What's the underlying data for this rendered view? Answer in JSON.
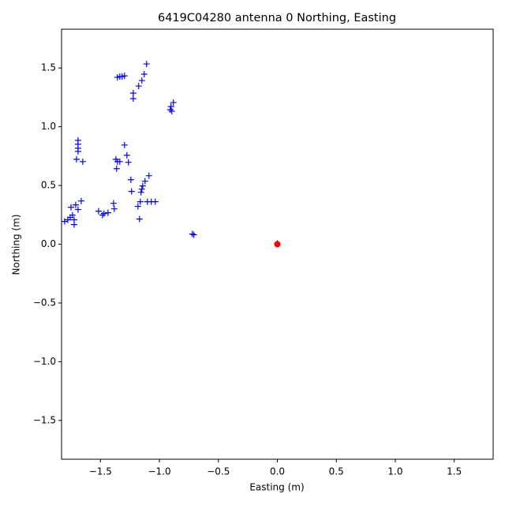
{
  "chart_data": {
    "type": "scatter",
    "title": "6419C04280 antenna 0 Northing, Easting",
    "x_label": "Easting (m)",
    "y_label": "Northing (m)",
    "xlim": [
      -1.83,
      1.83
    ],
    "ylim": [
      -1.83,
      1.83
    ],
    "xticks": [
      {
        "value": -1.5,
        "label": "−1.5"
      },
      {
        "value": -1,
        "label": "−1.0"
      },
      {
        "value": -0.5,
        "label": "−0.5"
      },
      {
        "value": 0,
        "label": "0.0"
      },
      0.5,
      {
        "value": 1,
        "label": "1.0"
      },
      1.5
    ],
    "yticks": [
      {
        "value": -1.5,
        "label": "−1.5"
      },
      {
        "value": -1,
        "label": "−1.0"
      },
      {
        "value": -0.5,
        "label": "−0.5"
      },
      {
        "value": 0,
        "label": "0.0"
      },
      0.5,
      {
        "value": 1,
        "label": "1.0"
      },
      1.5
    ],
    "series": [
      {
        "color": "#0000ff",
        "marker": "plus",
        "x": [
          -1.109,
          -1.129,
          -1.149,
          -1.176,
          -1.356,
          -1.336,
          -1.316,
          -1.296,
          -1.222,
          -1.222,
          -0.882,
          -0.902,
          -0.908,
          -0.895,
          -1.69,
          -1.69,
          -1.69,
          -1.69,
          -1.703,
          -1.65,
          -1.296,
          -1.276,
          -1.263,
          -1.369,
          -1.356,
          -1.336,
          -1.363,
          -1.089,
          -1.122,
          -1.142,
          -1.149,
          -1.156,
          -1.242,
          -1.236,
          -1.102,
          -1.069,
          -1.035,
          -1.162,
          -1.182,
          -1.169,
          -1.389,
          -1.383,
          -1.516,
          -1.47,
          -1.436,
          -1.483,
          -1.663,
          -1.71,
          -1.75,
          -1.69,
          -1.737,
          -1.757,
          -1.723,
          -1.777,
          -1.804,
          -1.723,
          -0.721,
          -0.708,
          0,
          0
        ],
        "values": [
          1.534,
          1.447,
          1.393,
          1.346,
          1.42,
          1.427,
          1.427,
          1.433,
          1.286,
          1.239,
          1.206,
          1.172,
          1.145,
          1.132,
          0.884,
          0.851,
          0.817,
          0.79,
          0.723,
          0.703,
          0.844,
          0.757,
          0.697,
          0.723,
          0.703,
          0.703,
          0.643,
          0.583,
          0.536,
          0.496,
          0.469,
          0.442,
          0.549,
          0.449,
          0.362,
          0.362,
          0.362,
          0.362,
          0.322,
          0.214,
          0.348,
          0.301,
          0.281,
          0.261,
          0.268,
          0.248,
          0.368,
          0.335,
          0.315,
          0.295,
          0.248,
          0.228,
          0.208,
          0.208,
          0.194,
          0.167,
          0.087,
          0.08,
          0.007,
          0
        ]
      },
      {
        "color": "#ff0000",
        "marker": "dot",
        "x": [
          0
        ],
        "values": [
          0
        ]
      }
    ]
  }
}
